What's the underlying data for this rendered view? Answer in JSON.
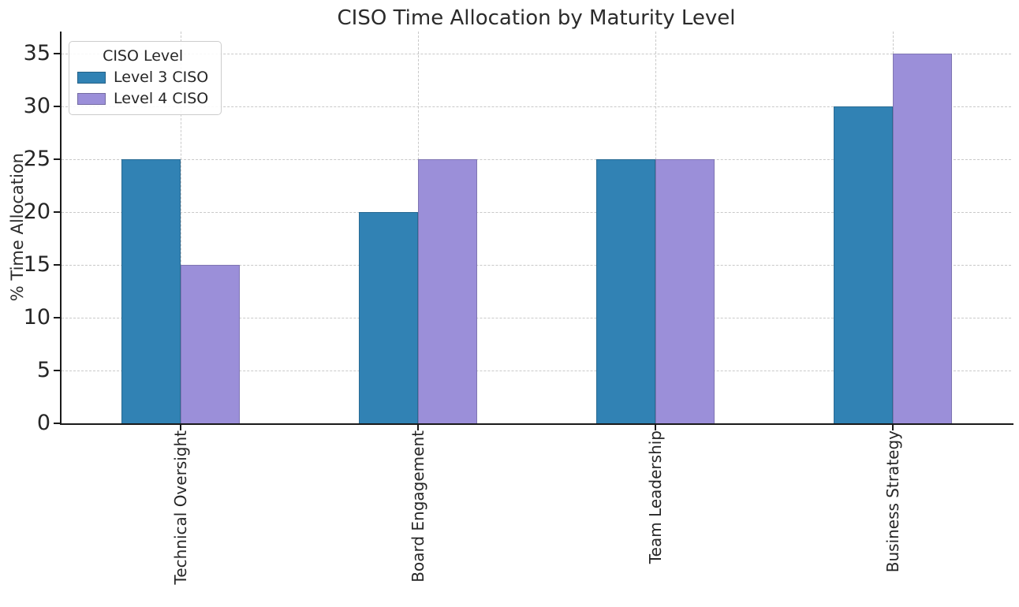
{
  "chart_data": {
    "type": "bar",
    "title": "CISO Time Allocation by Maturity Level",
    "xlabel": "",
    "ylabel": "% Time Allocation",
    "categories": [
      "Technical Oversight",
      "Board Engagement",
      "Team Leadership",
      "Business Strategy"
    ],
    "series": [
      {
        "name": "Level 3 CISO",
        "color": "#3182b4",
        "values": [
          25,
          20,
          25,
          30
        ]
      },
      {
        "name": "Level 4 CISO",
        "color": "#9b8fd9",
        "values": [
          15,
          25,
          25,
          35
        ]
      }
    ],
    "legend": {
      "title": "CISO Level",
      "position": "upper-left"
    },
    "yticks": [
      0,
      5,
      10,
      15,
      20,
      25,
      30,
      35
    ],
    "ylim": [
      0,
      37.1
    ],
    "grid": {
      "show": true,
      "style": "dashed",
      "axes": "both"
    }
  },
  "styles": {
    "grid_color": "#c9c9c9",
    "spine_color": "#1a1a1a",
    "text_color": "#262626",
    "background": "#ffffff"
  }
}
